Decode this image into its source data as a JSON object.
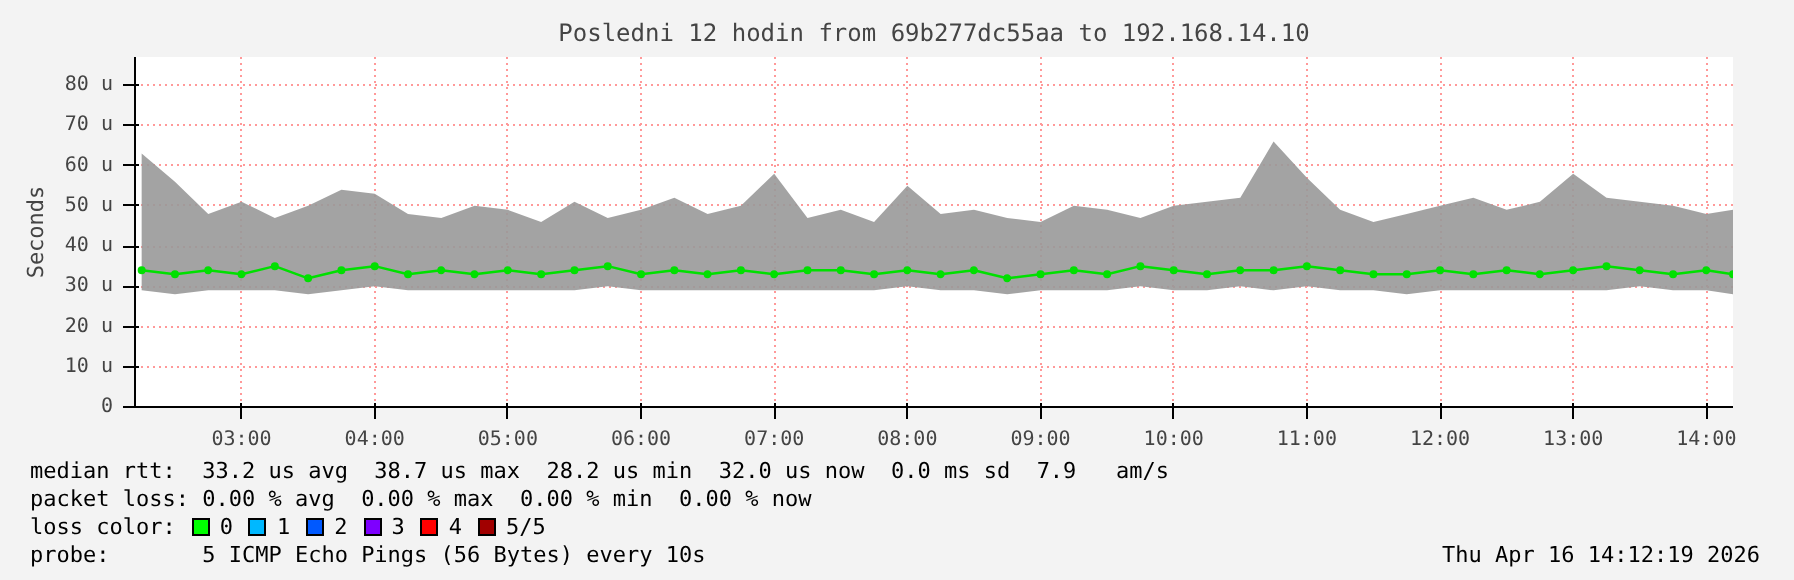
{
  "chart_data": {
    "type": "line",
    "title": "Posledni 12 hodin from 69b277dc55aa to 192.168.14.10",
    "ylabel": "Seconds",
    "x": [
      2.25,
      2.5,
      2.75,
      3.0,
      3.25,
      3.5,
      3.75,
      4.0,
      4.25,
      4.5,
      4.75,
      5.0,
      5.25,
      5.5,
      5.75,
      6.0,
      6.25,
      6.5,
      6.75,
      7.0,
      7.25,
      7.5,
      7.75,
      8.0,
      8.25,
      8.5,
      8.75,
      9.0,
      9.25,
      9.5,
      9.75,
      10.0,
      10.25,
      10.5,
      10.75,
      11.0,
      11.25,
      11.5,
      11.75,
      12.0,
      12.25,
      12.5,
      12.75,
      13.0,
      13.25,
      13.5,
      13.75,
      14.0,
      14.2
    ],
    "series": [
      {
        "color": "#00e000",
        "values": [
          34,
          33,
          34,
          33,
          35,
          32,
          34,
          35,
          33,
          34,
          33,
          34,
          33,
          34,
          35,
          33,
          34,
          33,
          34,
          33,
          34,
          34,
          33,
          34,
          33,
          34,
          32,
          33,
          34,
          33,
          35,
          34,
          33,
          34,
          34,
          35,
          34,
          33,
          33,
          34,
          33,
          34,
          33,
          34,
          35,
          34,
          33,
          34,
          33
        ],
        "lower": [
          29,
          28,
          29,
          29,
          29,
          28,
          29,
          30,
          29,
          29,
          29,
          29,
          29,
          29,
          30,
          29,
          29,
          29,
          29,
          29,
          29,
          29,
          29,
          30,
          29,
          29,
          28,
          29,
          29,
          29,
          30,
          29,
          29,
          30,
          29,
          30,
          29,
          29,
          28,
          29,
          29,
          29,
          29,
          29,
          29,
          30,
          29,
          29,
          28
        ],
        "upper": [
          63,
          56,
          48,
          51,
          47,
          50,
          54,
          53,
          48,
          47,
          50,
          49,
          46,
          51,
          47,
          49,
          52,
          48,
          50,
          58,
          47,
          49,
          46,
          55,
          48,
          49,
          47,
          46,
          50,
          49,
          47,
          50,
          51,
          52,
          66,
          57,
          49,
          46,
          48,
          50,
          52,
          49,
          51,
          58,
          52,
          51,
          50,
          48,
          49
        ]
      }
    ],
    "xlim": [
      2.2,
      14.2
    ],
    "ylim": [
      0,
      87
    ],
    "xticks": [
      {
        "value": 3,
        "label": "03:00"
      },
      {
        "value": 4,
        "label": "04:00"
      },
      {
        "value": 5,
        "label": "05:00"
      },
      {
        "value": 6,
        "label": "06:00"
      },
      {
        "value": 7,
        "label": "07:00"
      },
      {
        "value": 8,
        "label": "08:00"
      },
      {
        "value": 9,
        "label": "09:00"
      },
      {
        "value": 10,
        "label": "10:00"
      },
      {
        "value": 11,
        "label": "11:00"
      },
      {
        "value": 12,
        "label": "12:00"
      },
      {
        "value": 13,
        "label": "13:00"
      },
      {
        "value": 14,
        "label": "14:00"
      }
    ],
    "yticks": [
      0,
      {
        "value": 10,
        "label": "10 u"
      },
      {
        "value": 20,
        "label": "20 u"
      },
      {
        "value": 30,
        "label": "30 u"
      },
      {
        "value": 40,
        "label": "40 u"
      },
      {
        "value": 50,
        "label": "50 u"
      },
      {
        "value": 60,
        "label": "60 u"
      },
      {
        "value": 70,
        "label": "70 u"
      },
      {
        "value": 80,
        "label": "80 u"
      }
    ],
    "grid": true,
    "marker": "circle",
    "line_style": "solid",
    "annotations": [
      "median rtt:  33.2 us avg  38.7 us max  28.2 us min  32.0 us now  0.0 ms sd  7.9   am/s",
      "packet loss: 0.00 % avg  0.00 % max  0.00 % min  0.00 % now",
      "loss color:",
      "0",
      "1",
      "2",
      "3",
      "4",
      "5/5",
      "probe:       5 ICMP Echo Pings (56 Bytes) every 10s",
      "Thu Apr 16 14:12:19 2026"
    ]
  }
}
